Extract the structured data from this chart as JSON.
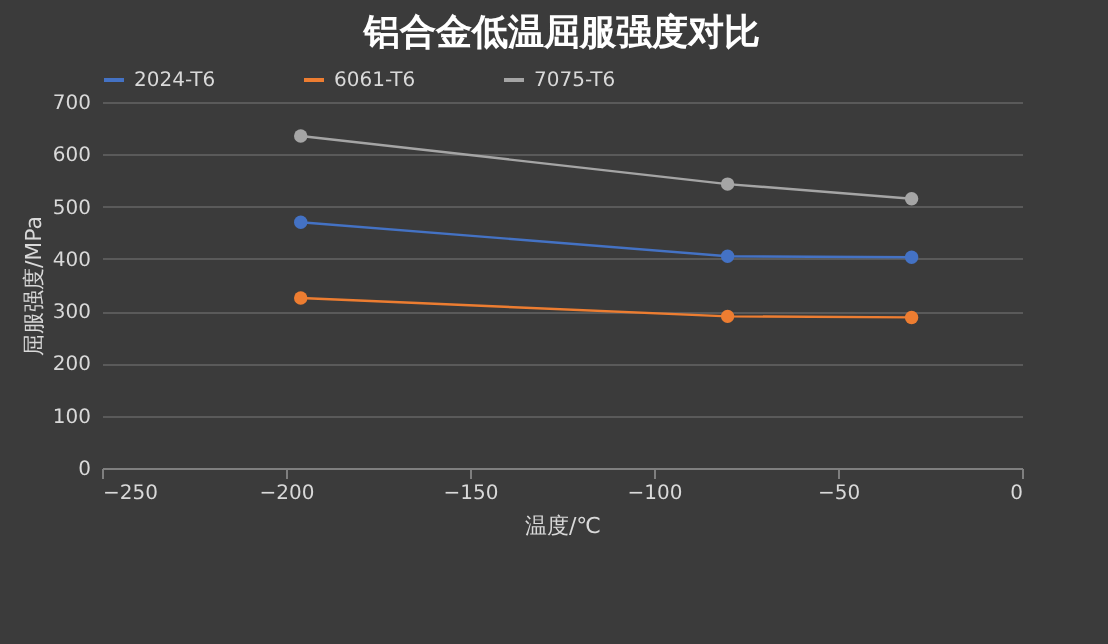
{
  "chart_data": {
    "type": "line",
    "title": "铝合金低温屈服强度对比",
    "xlabel": "温度/℃",
    "ylabel": "屈服强度/MPa",
    "x": [
      -196,
      -80,
      -30
    ],
    "series": [
      {
        "name": "2024-T6",
        "color": "#4472c4",
        "values": [
          470,
          405,
          403
        ]
      },
      {
        "name": "6061-T6",
        "color": "#ed7d31",
        "values": [
          325,
          290,
          288
        ]
      },
      {
        "name": "7075-T6",
        "color": "#a5a5a5",
        "values": [
          635,
          543,
          515
        ]
      }
    ],
    "xlim": [
      -250,
      0
    ],
    "xticks": [
      -250,
      -200,
      -150,
      -100,
      -50,
      0
    ],
    "ylim": [
      0,
      700
    ],
    "yticks": [
      0,
      100,
      200,
      300,
      400,
      500,
      600,
      700
    ],
    "grid": "y",
    "legend": "top",
    "marker": "circle",
    "line_style": "solid"
  }
}
